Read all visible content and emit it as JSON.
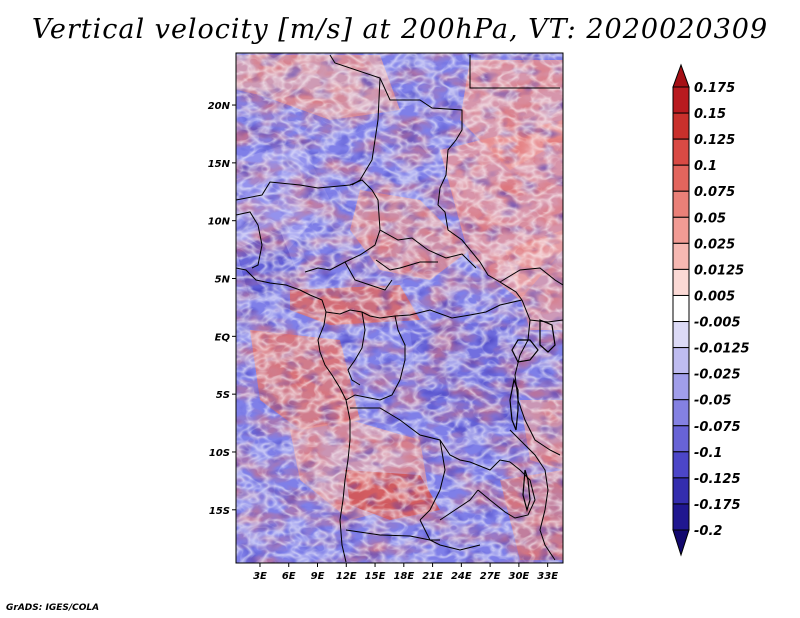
{
  "title": "Vertical velocity [m/s] at 200hPa, VT: 2020020309",
  "credit": "GrADS: IGES/COLA",
  "map": {
    "lat_ticks": [
      "20N",
      "15N",
      "10N",
      "5N",
      "EQ",
      "5S",
      "10S",
      "15S"
    ],
    "lat_values": [
      20,
      15,
      10,
      5,
      0,
      -5,
      -10,
      -15
    ],
    "lon_ticks": [
      "3E",
      "6E",
      "9E",
      "12E",
      "15E",
      "18E",
      "21E",
      "24E",
      "27E",
      "30E",
      "33E"
    ],
    "lon_values": [
      3,
      6,
      9,
      12,
      15,
      18,
      21,
      24,
      27,
      30,
      33
    ],
    "lat_range": [
      -19.6,
      24.5
    ],
    "lon_range": [
      0.5,
      34.6
    ]
  },
  "colorbar": {
    "labels": [
      "0.175",
      "0.15",
      "0.125",
      "0.1",
      "0.075",
      "0.05",
      "0.025",
      "0.0125",
      "0.005",
      "-0.005",
      "-0.0125",
      "-0.025",
      "-0.05",
      "-0.075",
      "-0.1",
      "-0.125",
      "-0.175",
      "-0.2"
    ],
    "colors": [
      "#a50f15",
      "#b81a1f",
      "#c9302c",
      "#d94a44",
      "#e2655d",
      "#ea8078",
      "#f19b94",
      "#f6b8b2",
      "#fbd9d5",
      "#ffffff",
      "#dcdaf6",
      "#bfbcf0",
      "#a19eea",
      "#8481e2",
      "#6863d6",
      "#4c46c8",
      "#342dae",
      "#201790",
      "#12086e"
    ]
  }
}
